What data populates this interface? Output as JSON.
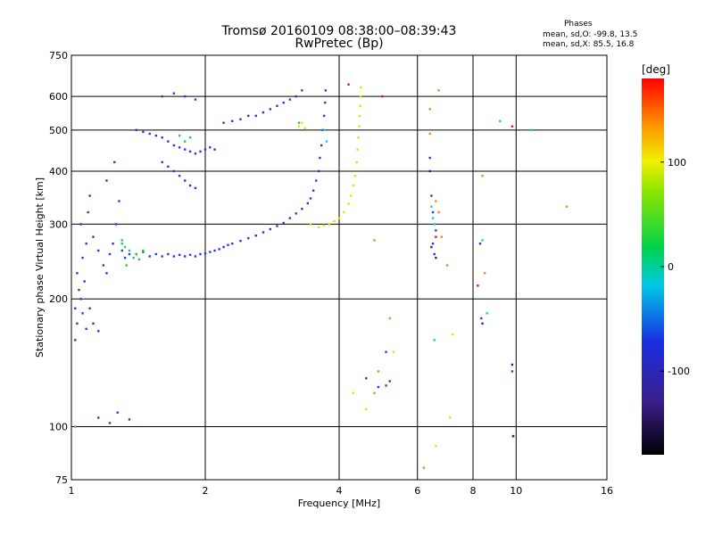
{
  "header": {
    "title_line1": "Tromsø 20160109 08:38:00–08:39:43",
    "title_line2": "RwPretec (Bp)"
  },
  "phase_box": {
    "heading": "Phases",
    "line_o": "mean, sd,O: -99.8, 13.5",
    "line_x": "mean, sd,X:  85.5, 16.8"
  },
  "chart_data": {
    "type": "scatter",
    "xlabel": "Frequency [MHz]",
    "ylabel": "Stationary phase Virtual Height [km]",
    "x_scale": "log",
    "y_scale": "log",
    "xlim": [
      1,
      16
    ],
    "ylim": [
      75,
      750
    ],
    "x_ticks": [
      1,
      2,
      4,
      6,
      8,
      10,
      16
    ],
    "y_ticks": [
      75,
      100,
      200,
      300,
      400,
      500,
      600,
      750
    ],
    "grid": true,
    "colorbar": {
      "label": "[deg]",
      "range": [
        -180,
        180
      ],
      "ticks": [
        100,
        0,
        -100
      ]
    },
    "series": [
      {
        "mode": "O",
        "color": "#2a3ad6",
        "points": [
          [
            1.02,
            160
          ],
          [
            1.02,
            190
          ],
          [
            1.03,
            175
          ],
          [
            1.05,
            200
          ],
          [
            1.06,
            185
          ],
          [
            1.08,
            170
          ],
          [
            1.04,
            210
          ],
          [
            1.07,
            220
          ],
          [
            1.1,
            190
          ],
          [
            1.12,
            175
          ],
          [
            1.15,
            168
          ],
          [
            1.03,
            230
          ],
          [
            1.06,
            250
          ],
          [
            1.08,
            270
          ],
          [
            1.05,
            300
          ],
          [
            1.09,
            320
          ],
          [
            1.1,
            350
          ],
          [
            1.12,
            280
          ],
          [
            1.15,
            260
          ],
          [
            1.18,
            240
          ],
          [
            1.2,
            230
          ],
          [
            1.22,
            255
          ],
          [
            1.24,
            270
          ],
          [
            1.26,
            300
          ],
          [
            1.2,
            380
          ],
          [
            1.25,
            420
          ],
          [
            1.28,
            340
          ],
          [
            1.3,
            260
          ],
          [
            1.32,
            250
          ],
          [
            1.35,
            255
          ],
          [
            1.4,
            255
          ],
          [
            1.45,
            258
          ],
          [
            1.5,
            252
          ],
          [
            1.55,
            255
          ],
          [
            1.6,
            252
          ],
          [
            1.65,
            255
          ],
          [
            1.7,
            252
          ],
          [
            1.75,
            254
          ],
          [
            1.8,
            252
          ],
          [
            1.85,
            254
          ],
          [
            1.9,
            252
          ],
          [
            1.95,
            255
          ],
          [
            2.0,
            256
          ],
          [
            2.05,
            258
          ],
          [
            2.1,
            260
          ],
          [
            2.15,
            262
          ],
          [
            2.2,
            265
          ],
          [
            2.25,
            268
          ],
          [
            2.3,
            270
          ],
          [
            2.4,
            274
          ],
          [
            2.5,
            278
          ],
          [
            2.6,
            282
          ],
          [
            2.7,
            287
          ],
          [
            2.8,
            292
          ],
          [
            2.9,
            297
          ],
          [
            3.0,
            302
          ],
          [
            3.1,
            310
          ],
          [
            3.2,
            318
          ],
          [
            3.3,
            326
          ],
          [
            3.4,
            336
          ],
          [
            3.45,
            345
          ],
          [
            3.5,
            360
          ],
          [
            3.55,
            380
          ],
          [
            3.6,
            400
          ],
          [
            3.62,
            430
          ],
          [
            3.65,
            460
          ],
          [
            3.68,
            500
          ],
          [
            3.7,
            540
          ],
          [
            3.72,
            580
          ],
          [
            3.73,
            620
          ],
          [
            3.3,
            620
          ],
          [
            3.2,
            600
          ],
          [
            3.1,
            590
          ],
          [
            3.0,
            580
          ],
          [
            2.9,
            570
          ],
          [
            2.8,
            560
          ],
          [
            2.7,
            550
          ],
          [
            2.6,
            540
          ],
          [
            2.5,
            540
          ],
          [
            2.4,
            530
          ],
          [
            2.3,
            525
          ],
          [
            2.2,
            520
          ],
          [
            1.4,
            500
          ],
          [
            1.45,
            495
          ],
          [
            1.5,
            490
          ],
          [
            1.55,
            485
          ],
          [
            1.6,
            480
          ],
          [
            1.65,
            470
          ],
          [
            1.7,
            460
          ],
          [
            1.75,
            455
          ],
          [
            1.8,
            450
          ],
          [
            1.85,
            445
          ],
          [
            1.9,
            440
          ],
          [
            1.95,
            445
          ],
          [
            2.0,
            450
          ],
          [
            2.05,
            455
          ],
          [
            2.1,
            450
          ],
          [
            1.6,
            420
          ],
          [
            1.65,
            410
          ],
          [
            1.7,
            400
          ],
          [
            1.75,
            390
          ],
          [
            1.8,
            380
          ],
          [
            1.85,
            370
          ],
          [
            1.9,
            365
          ],
          [
            1.6,
            600
          ],
          [
            1.7,
            610
          ],
          [
            1.8,
            600
          ],
          [
            1.9,
            590
          ],
          [
            1.15,
            105
          ],
          [
            1.22,
            102
          ],
          [
            1.27,
            108
          ],
          [
            1.35,
            104
          ],
          [
            6.4,
            430
          ],
          [
            6.45,
            350
          ],
          [
            6.5,
            320
          ],
          [
            6.6,
            290
          ],
          [
            6.5,
            270
          ],
          [
            6.55,
            255
          ],
          [
            8.3,
            270
          ],
          [
            8.35,
            180
          ],
          [
            9.8,
            135
          ],
          [
            9.85,
            95
          ],
          [
            5.1,
            150
          ],
          [
            4.6,
            130
          ],
          [
            4.9,
            124
          ],
          [
            5.2,
            128
          ]
        ]
      },
      {
        "mode": "X",
        "color": "#e6e000",
        "points": [
          [
            3.8,
            300
          ],
          [
            3.9,
            305
          ],
          [
            4.0,
            310
          ],
          [
            4.1,
            320
          ],
          [
            4.2,
            335
          ],
          [
            4.25,
            350
          ],
          [
            4.3,
            370
          ],
          [
            4.35,
            390
          ],
          [
            4.38,
            420
          ],
          [
            4.4,
            450
          ],
          [
            4.42,
            480
          ],
          [
            4.44,
            510
          ],
          [
            4.45,
            540
          ],
          [
            4.46,
            570
          ],
          [
            4.47,
            600
          ],
          [
            4.48,
            630
          ],
          [
            3.25,
            510
          ],
          [
            3.3,
            520
          ],
          [
            3.35,
            505
          ],
          [
            3.45,
            300
          ],
          [
            3.6,
            295
          ],
          [
            3.7,
            298
          ],
          [
            4.3,
            120
          ],
          [
            4.6,
            110
          ],
          [
            5.3,
            150
          ],
          [
            7.1,
            105
          ],
          [
            7.2,
            165
          ],
          [
            6.6,
            90
          ]
        ]
      },
      {
        "mode": "X",
        "color": "#f08a1e",
        "points": [
          [
            6.7,
            620
          ],
          [
            6.4,
            560
          ],
          [
            6.4,
            490
          ],
          [
            6.6,
            340
          ],
          [
            6.7,
            320
          ],
          [
            6.8,
            280
          ],
          [
            7.0,
            240
          ],
          [
            8.4,
            390
          ],
          [
            8.5,
            230
          ],
          [
            13.0,
            330
          ],
          [
            6.2,
            80
          ],
          [
            4.9,
            135
          ],
          [
            4.8,
            120
          ],
          [
            4.8,
            275
          ],
          [
            5.2,
            180
          ]
        ]
      },
      {
        "mode": "O",
        "color": "#22cc55",
        "points": [
          [
            1.3,
            270
          ],
          [
            1.32,
            265
          ],
          [
            1.35,
            260
          ],
          [
            1.38,
            250
          ],
          [
            1.4,
            255
          ],
          [
            1.42,
            248
          ],
          [
            1.45,
            260
          ],
          [
            1.33,
            240
          ],
          [
            1.3,
            275
          ],
          [
            1.8,
            470
          ],
          [
            1.75,
            485
          ],
          [
            1.85,
            480
          ],
          [
            3.25,
            520
          ],
          [
            1.02,
            100
          ]
        ]
      },
      {
        "mode": "O",
        "color": "#1ec8d8",
        "points": [
          [
            6.45,
            330
          ],
          [
            6.5,
            310
          ],
          [
            6.55,
            300
          ],
          [
            8.4,
            275
          ],
          [
            8.6,
            185
          ],
          [
            9.2,
            525
          ],
          [
            10.8,
            500
          ],
          [
            6.55,
            160
          ],
          [
            3.7,
            500
          ],
          [
            3.75,
            470
          ]
        ]
      },
      {
        "mode": "X",
        "color": "#e01818",
        "points": [
          [
            4.2,
            640
          ],
          [
            5.0,
            600
          ],
          [
            6.6,
            280
          ],
          [
            9.8,
            510
          ],
          [
            8.2,
            215
          ],
          [
            5.1,
            125
          ]
        ]
      },
      {
        "mode": "O",
        "color": "#3a1a80",
        "points": [
          [
            6.4,
            400
          ],
          [
            6.45,
            265
          ],
          [
            6.6,
            250
          ],
          [
            9.8,
            140
          ],
          [
            9.85,
            95
          ],
          [
            8.4,
            175
          ]
        ]
      }
    ]
  }
}
